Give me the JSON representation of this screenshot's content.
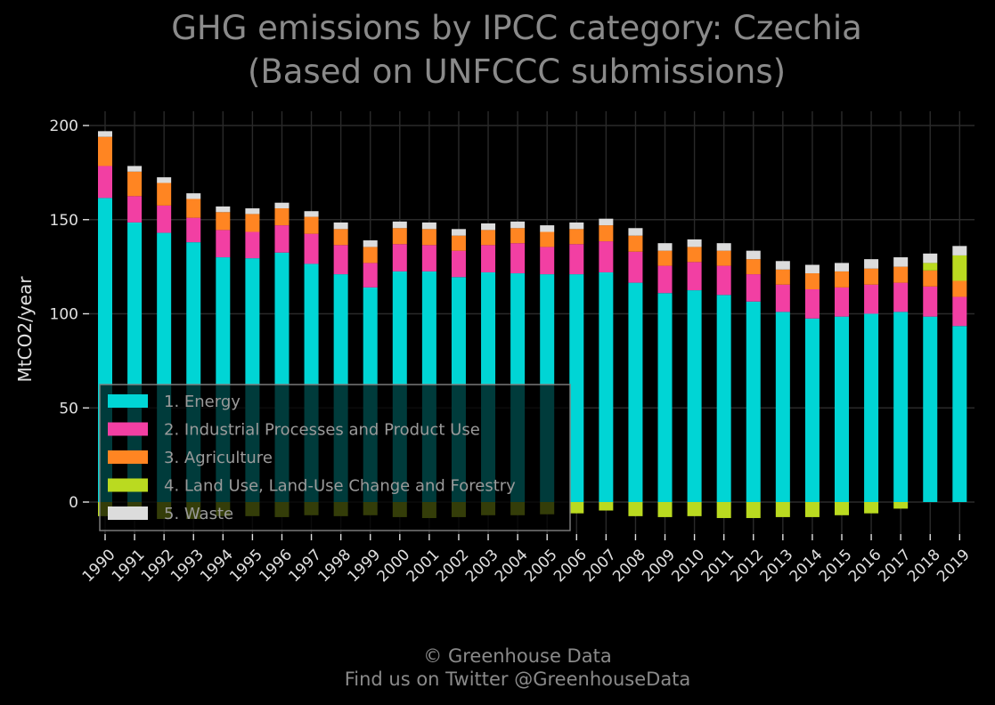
{
  "chart_data": {
    "type": "bar",
    "stacked": true,
    "title_line1": "GHG emissions by IPCC category: Czechia",
    "title_line2": "(Based on UNFCCC submissions)",
    "xlabel": "",
    "ylabel": "MtCO2/year",
    "ylim": [
      -12,
      205
    ],
    "yticks": [
      0,
      50,
      100,
      150,
      200
    ],
    "grid": true,
    "legend_position": "lower-left",
    "categories": [
      "1990",
      "1991",
      "1992",
      "1993",
      "1994",
      "1995",
      "1996",
      "1997",
      "1998",
      "1999",
      "2000",
      "2001",
      "2002",
      "2003",
      "2004",
      "2005",
      "2006",
      "2007",
      "2008",
      "2009",
      "2010",
      "2011",
      "2012",
      "2013",
      "2014",
      "2015",
      "2016",
      "2017",
      "2018",
      "2019"
    ],
    "series": [
      {
        "name": "1. Energy",
        "color": "#00d5d5",
        "values": [
          161.5,
          148.5,
          143,
          138,
          130,
          129.5,
          132.5,
          126.5,
          121,
          114,
          122.5,
          122.5,
          119.5,
          122,
          121.5,
          121,
          121,
          122,
          116.5,
          111,
          112.5,
          110,
          106.5,
          101,
          97.5,
          98.5,
          100,
          101,
          98.5,
          93.5
        ]
      },
      {
        "name": "2. Industrial Processes and Product Use",
        "color": "#f23fa3",
        "values": [
          17,
          14,
          14.5,
          13,
          14.5,
          14,
          14.5,
          16,
          15.5,
          13,
          14.5,
          14,
          14,
          14.5,
          16,
          14.5,
          16,
          16.5,
          16.5,
          14.5,
          15,
          15.5,
          14.5,
          14.5,
          15.5,
          15.5,
          15.5,
          15.5,
          16,
          15.5
        ]
      },
      {
        "name": "3. Agriculture",
        "color": "#ff8522",
        "values": [
          15.5,
          13,
          12,
          10,
          9.5,
          9.5,
          9,
          9,
          8.5,
          8.5,
          8.5,
          8.5,
          8,
          8,
          8,
          8,
          8,
          8.5,
          8.5,
          8,
          8,
          8,
          8,
          8,
          8.5,
          8.5,
          8.5,
          8.5,
          8.5,
          8.5
        ]
      },
      {
        "name": "4. Land Use, Land-Use Change and Forestry",
        "color": "#bada20",
        "values": [
          -7.5,
          -8,
          -9,
          -9,
          -7.5,
          -7.5,
          -8,
          -7,
          -7.5,
          -7,
          -8,
          -8.5,
          -8,
          -7,
          -7,
          -6.5,
          -6,
          -4.5,
          -7.5,
          -8,
          -7.5,
          -8.5,
          -8.5,
          -8,
          -8,
          -7,
          -6,
          -3.5,
          4,
          13.5
        ]
      },
      {
        "name": "5. Waste",
        "color": "#dcdcdc",
        "values": [
          3,
          3,
          3,
          3,
          3,
          3,
          3,
          3,
          3.5,
          3.5,
          3.5,
          3.5,
          3.5,
          3.5,
          3.5,
          3.5,
          3.5,
          3.5,
          4,
          4,
          4,
          4,
          4.5,
          4.5,
          4.5,
          4.5,
          5,
          5,
          5,
          5
        ]
      }
    ]
  },
  "footer": {
    "line1": "© Greenhouse Data",
    "line2": "Find us on Twitter @GreenhouseData"
  }
}
